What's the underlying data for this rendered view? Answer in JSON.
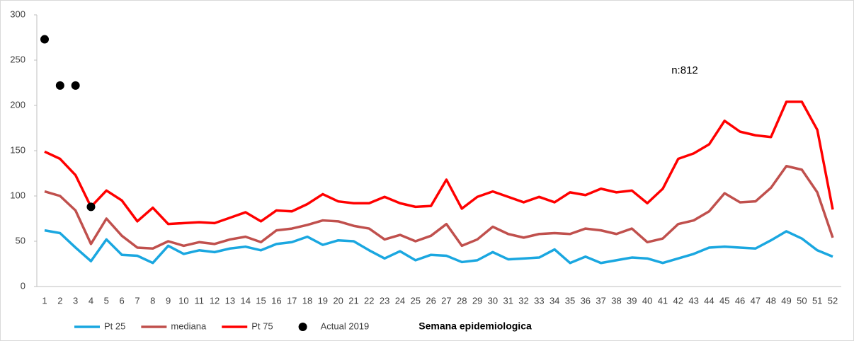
{
  "chart_data": {
    "type": "line",
    "x_label": "Semana  epidemiologica",
    "annotation": "n:812",
    "categories": [
      "1",
      "2",
      "3",
      "4",
      "5",
      "6",
      "7",
      "8",
      "9",
      "10",
      "11",
      "12",
      "13",
      "14",
      "15",
      "16",
      "17",
      "18",
      "19",
      "20",
      "21",
      "22",
      "23",
      "24",
      "25",
      "26",
      "27",
      "28",
      "29",
      "30",
      "31",
      "32",
      "33",
      "34",
      "35",
      "36",
      "37",
      "38",
      "39",
      "40",
      "41",
      "42",
      "43",
      "44",
      "45",
      "46",
      "47",
      "48",
      "49",
      "50",
      "51",
      "52"
    ],
    "ylim": [
      0,
      300
    ],
    "yticks": [
      0,
      50,
      100,
      150,
      200,
      250,
      300
    ],
    "series": [
      {
        "name": "Pt 25",
        "color": "#1aa7e0",
        "type": "line",
        "values": [
          62,
          59,
          43,
          28,
          52,
          35,
          34,
          26,
          45,
          36,
          40,
          38,
          42,
          44,
          40,
          47,
          49,
          55,
          46,
          51,
          50,
          40,
          31,
          39,
          29,
          35,
          34,
          27,
          29,
          38,
          30,
          31,
          32,
          41,
          26,
          33,
          26,
          29,
          32,
          31,
          26,
          31,
          36,
          43,
          44,
          43,
          42,
          51,
          61,
          53,
          40,
          33
        ]
      },
      {
        "name": "mediana",
        "color": "#c0504d",
        "type": "line",
        "values": [
          105,
          100,
          84,
          47,
          75,
          56,
          43,
          42,
          50,
          45,
          49,
          47,
          52,
          55,
          49,
          62,
          64,
          68,
          73,
          72,
          67,
          64,
          52,
          57,
          50,
          56,
          69,
          45,
          52,
          66,
          58,
          54,
          58,
          59,
          58,
          64,
          62,
          58,
          64,
          49,
          53,
          69,
          73,
          83,
          103,
          93,
          94,
          109,
          133,
          129,
          104,
          54
        ]
      },
      {
        "name": "Pt 75",
        "color": "#ff0000",
        "type": "line",
        "values": [
          149,
          141,
          123,
          88,
          106,
          95,
          72,
          87,
          69,
          70,
          71,
          70,
          76,
          82,
          72,
          84,
          83,
          91,
          102,
          94,
          92,
          92,
          99,
          92,
          88,
          89,
          118,
          86,
          99,
          105,
          99,
          93,
          99,
          93,
          104,
          101,
          108,
          104,
          106,
          92,
          108,
          141,
          147,
          157,
          183,
          171,
          167,
          165,
          204,
          204,
          173,
          85
        ]
      },
      {
        "name": "Actual 2019",
        "color": "#000000",
        "type": "scatter",
        "values": [
          273,
          222,
          222,
          88,
          null,
          null,
          null,
          null,
          null,
          null,
          null,
          null,
          null,
          null,
          null,
          null,
          null,
          null,
          null,
          null,
          null,
          null,
          null,
          null,
          null,
          null,
          null,
          null,
          null,
          null,
          null,
          null,
          null,
          null,
          null,
          null,
          null,
          null,
          null,
          null,
          null,
          null,
          null,
          null,
          null,
          null,
          null,
          null,
          null,
          null,
          null,
          null
        ]
      }
    ]
  }
}
